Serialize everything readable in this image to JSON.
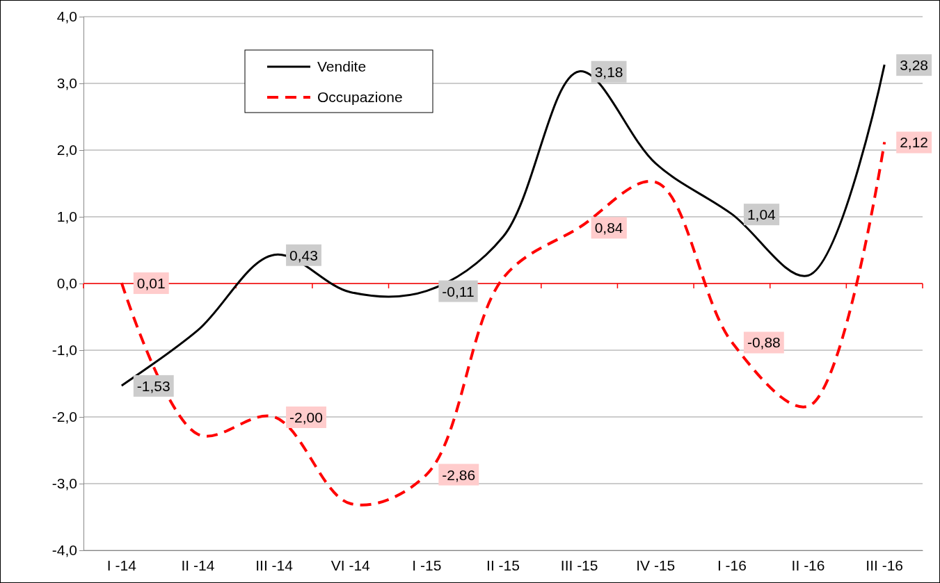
{
  "chart_data": {
    "type": "line",
    "categories": [
      "I -14",
      "II -14",
      "III -14",
      "VI -14",
      "I -15",
      "II -15",
      "III -15",
      "IV -15",
      "I -16",
      "II -16",
      "III -16"
    ],
    "series": [
      {
        "name": "Vendite",
        "color": "#000000",
        "line_style": "solid",
        "values": [
          -1.53,
          -0.7,
          0.43,
          -0.13,
          -0.11,
          0.7,
          3.18,
          1.8,
          1.04,
          0.12,
          3.28
        ],
        "value_labels": [
          "-1,53",
          null,
          "0,43",
          null,
          "-0,11",
          null,
          "3,18",
          null,
          "1,04",
          null,
          "3,28"
        ]
      },
      {
        "name": "Occupazione",
        "color": "#ff0000",
        "line_style": "dashed",
        "values": [
          0.01,
          -2.26,
          -2.0,
          -3.3,
          -2.86,
          0.08,
          0.84,
          1.52,
          -0.88,
          -1.84,
          2.12
        ],
        "value_labels": [
          "0,01",
          null,
          "-2,00",
          null,
          "-2,86",
          null,
          "0,84",
          null,
          "-0,88",
          null,
          "2,12"
        ]
      }
    ],
    "ylim": [
      -4,
      4
    ],
    "yticks": [
      {
        "value": -4,
        "label": "-4,0"
      },
      {
        "value": -3,
        "label": "-3,0"
      },
      {
        "value": -2,
        "label": "-2,0"
      },
      {
        "value": -1,
        "label": "-1,0"
      },
      {
        "value": 0,
        "label": "0,0"
      },
      {
        "value": 1,
        "label": "1,0"
      },
      {
        "value": 2,
        "label": "2,0"
      },
      {
        "value": 3,
        "label": "3,0"
      },
      {
        "value": 4,
        "label": "4,0"
      }
    ],
    "grid": "y",
    "legend": "top left",
    "marker": "none",
    "ref_lines": [
      {
        "axis": "y",
        "value": 0,
        "color": "#ff0000"
      }
    ]
  }
}
